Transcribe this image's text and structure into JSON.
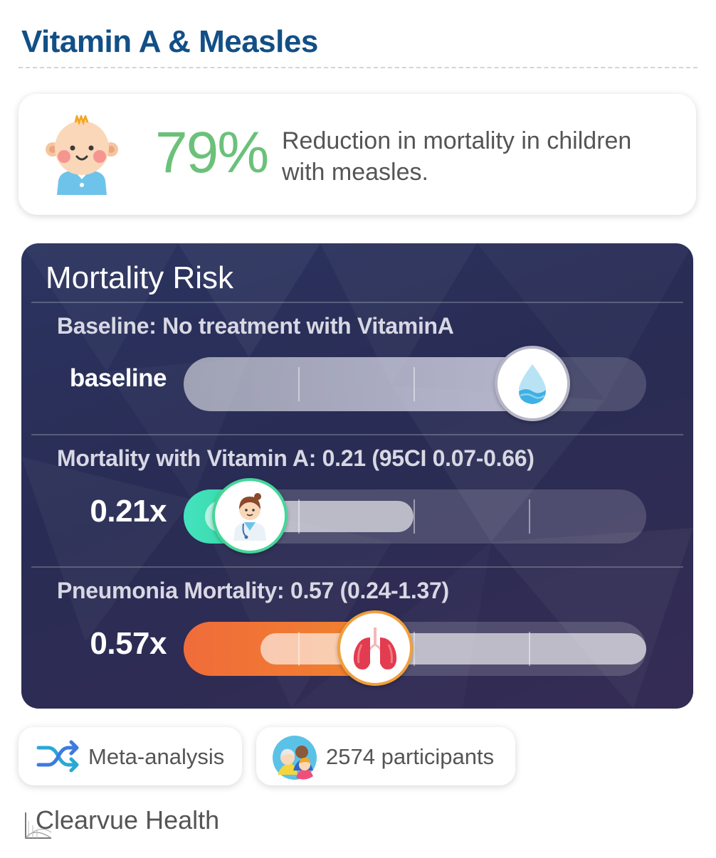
{
  "header": {
    "title": "Vitamin A & Measles"
  },
  "stat": {
    "icon": "baby-icon",
    "value": "79%",
    "description": "Reduction in mortality in children with measles."
  },
  "risk_panel": {
    "title": "Mortality Risk",
    "rows": [
      {
        "caption": "Baseline: No treatment with VitaminA",
        "value_label": "baseline",
        "ratio": 1.0,
        "icon": "water-drop-icon",
        "fill_color": "#c6c6d4",
        "ring_color": "#b6b6c8"
      },
      {
        "caption": "Mortality with Vitamin A: 0.21 (95CI 0.07-0.66)",
        "value_label": "0.21x",
        "ratio": 0.21,
        "ci_low": 0.07,
        "ci_high": 0.66,
        "icon": "doctor-icon",
        "fill_color": "#3ee0b0",
        "ring_color": "#45d69a"
      },
      {
        "caption": "Pneumonia Mortality: 0.57 (0.24-1.37)",
        "value_label": "0.57x",
        "ratio": 0.57,
        "ci_low": 0.24,
        "ci_high": 1.37,
        "icon": "lungs-icon",
        "fill_color": "#f05a3c",
        "ring_color": "#f0a03c"
      }
    ]
  },
  "footer": {
    "study_type": {
      "icon": "shuffle-icon",
      "label": "Meta-analysis"
    },
    "participants": {
      "icon": "people-icon",
      "label": "2574 participants"
    },
    "brand": {
      "label": "Clearvue Health"
    }
  },
  "colors": {
    "title": "#124f86",
    "stat_green": "#6cc17a",
    "panel_bg": "#2b3059"
  }
}
